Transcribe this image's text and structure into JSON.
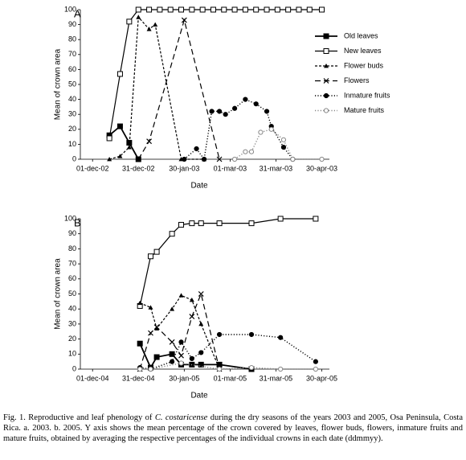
{
  "chart_data": [
    {
      "type": "line",
      "panel": "A",
      "y_label": "Mean of crown area",
      "x_label": "Date",
      "legend": "right",
      "xlim": [
        "2002-11-23",
        "2003-05-05"
      ],
      "ylim": [
        0,
        100
      ],
      "xticks": [
        {
          "value": "2002-12-01",
          "label": "01-dec-02"
        },
        {
          "value": "2002-12-31",
          "label": "31-dec-02"
        },
        {
          "value": "2003-01-30",
          "label": "30-jan-03"
        },
        {
          "value": "2003-03-01",
          "label": "01-mar-03"
        },
        {
          "value": "2003-03-31",
          "label": "31-mar-03"
        },
        {
          "value": "2003-04-30",
          "label": "30-apr-03"
        }
      ],
      "yticks": [
        0,
        10,
        20,
        30,
        40,
        50,
        60,
        70,
        80,
        90,
        100
      ],
      "series": [
        {
          "name": "Old leaves",
          "color": "#000000",
          "marker": "square-filled",
          "line": "solid-thick",
          "x": [
            "2002-12-12",
            "2002-12-19",
            "2002-12-25",
            "2002-12-31"
          ],
          "values": [
            16,
            22,
            11,
            0
          ]
        },
        {
          "name": "New leaves",
          "color": "#000000",
          "marker": "square-open",
          "line": "solid",
          "x": [
            "2002-12-12",
            "2002-12-19",
            "2002-12-25",
            "2002-12-31",
            "2003-01-07",
            "2003-01-14",
            "2003-01-21",
            "2003-01-28",
            "2003-02-04",
            "2003-02-11",
            "2003-02-18",
            "2003-02-25",
            "2003-03-04",
            "2003-03-11",
            "2003-03-18",
            "2003-03-25",
            "2003-04-01",
            "2003-04-08",
            "2003-04-15",
            "2003-04-22",
            "2003-04-30"
          ],
          "values": [
            14,
            57,
            92,
            100,
            100,
            100,
            100,
            100,
            100,
            100,
            100,
            100,
            100,
            100,
            100,
            100,
            100,
            100,
            100,
            100,
            100
          ]
        },
        {
          "name": "Flower buds",
          "color": "#000000",
          "marker": "triangle-filled",
          "line": "short-dash",
          "x": [
            "2002-12-12",
            "2002-12-19",
            "2002-12-25",
            "2002-12-31",
            "2003-01-07",
            "2003-01-11",
            "2003-01-28",
            "2003-02-12"
          ],
          "values": [
            0,
            2,
            8,
            95,
            87,
            90,
            0,
            0
          ]
        },
        {
          "name": "Flowers",
          "color": "#000000",
          "marker": "x",
          "line": "long-dash",
          "x": [
            "2002-12-31",
            "2003-01-07",
            "2003-01-30",
            "2003-02-22"
          ],
          "values": [
            0,
            12,
            93,
            0
          ]
        },
        {
          "name": "Inmature fruits",
          "color": "#000000",
          "marker": "circle-filled",
          "line": "dotted",
          "x": [
            "2003-01-30",
            "2003-02-07",
            "2003-02-12",
            "2003-02-17",
            "2003-02-22",
            "2003-02-26",
            "2003-03-04",
            "2003-03-11",
            "2003-03-18",
            "2003-03-25",
            "2003-03-28",
            "2003-04-05",
            "2003-04-11"
          ],
          "values": [
            0,
            7,
            0,
            32,
            32,
            30,
            34,
            40,
            37,
            32,
            22,
            8,
            0
          ]
        },
        {
          "name": "Mature fruits",
          "color": "#888888",
          "marker": "circle-open",
          "line": "dotted",
          "x": [
            "2003-03-04",
            "2003-03-11",
            "2003-03-15",
            "2003-03-21",
            "2003-03-28",
            "2003-04-05",
            "2003-04-11",
            "2003-04-30"
          ],
          "values": [
            0,
            5,
            5,
            18,
            20,
            13,
            0,
            0
          ]
        }
      ]
    },
    {
      "type": "line",
      "panel": "B",
      "y_label": "Mean of crown area",
      "x_label": "Date",
      "xlim": [
        "2004-11-23",
        "2005-05-05"
      ],
      "ylim": [
        0,
        100
      ],
      "xticks": [
        {
          "value": "2004-12-01",
          "label": "01-dec-04"
        },
        {
          "value": "2004-12-31",
          "label": "31-dec-04"
        },
        {
          "value": "2005-01-30",
          "label": "30-jan-05"
        },
        {
          "value": "2005-03-01",
          "label": "01-mar-05"
        },
        {
          "value": "2005-03-31",
          "label": "31-mar-05"
        },
        {
          "value": "2005-04-30",
          "label": "30-apr-05"
        }
      ],
      "yticks": [
        0,
        10,
        20,
        30,
        40,
        50,
        60,
        70,
        80,
        90,
        100
      ],
      "series": [
        {
          "color": "#000000",
          "marker": "square-filled",
          "line": "solid-thick",
          "x": [
            "2005-01-01",
            "2005-01-08",
            "2005-01-12",
            "2005-01-22",
            "2005-01-28",
            "2005-02-04",
            "2005-02-10",
            "2005-02-22",
            "2005-03-15"
          ],
          "values": [
            17,
            1,
            8,
            10,
            3,
            3,
            3,
            3,
            0
          ]
        },
        {
          "color": "#000000",
          "marker": "square-open",
          "line": "solid",
          "x": [
            "2005-01-01",
            "2005-01-08",
            "2005-01-12",
            "2005-01-22",
            "2005-01-28",
            "2005-02-04",
            "2005-02-10",
            "2005-02-22",
            "2005-03-15",
            "2005-04-03",
            "2005-04-26"
          ],
          "values": [
            42,
            75,
            78,
            90,
            96,
            97,
            97,
            97,
            97,
            100,
            100
          ]
        },
        {
          "color": "#000000",
          "marker": "triangle-filled",
          "line": "short-dash",
          "x": [
            "2005-01-01",
            "2005-01-08",
            "2005-01-12",
            "2005-01-22",
            "2005-01-28",
            "2005-02-04",
            "2005-02-10",
            "2005-02-22"
          ],
          "values": [
            44,
            41,
            27,
            40,
            49,
            46,
            30,
            0
          ]
        },
        {
          "color": "#000000",
          "marker": "x",
          "line": "long-dash",
          "x": [
            "2005-01-01",
            "2005-01-08",
            "2005-01-12",
            "2005-01-22",
            "2005-01-28",
            "2005-02-04",
            "2005-02-10",
            "2005-02-22"
          ],
          "values": [
            0,
            24,
            28,
            18,
            9,
            35,
            50,
            0
          ]
        },
        {
          "color": "#000000",
          "marker": "circle-filled",
          "line": "dotted",
          "x": [
            "2005-01-01",
            "2005-01-08",
            "2005-01-22",
            "2005-01-28",
            "2005-02-04",
            "2005-02-10",
            "2005-02-22",
            "2005-03-15",
            "2005-04-03",
            "2005-04-26"
          ],
          "values": [
            1,
            0,
            5,
            18,
            7,
            11,
            23,
            23,
            21,
            5
          ]
        },
        {
          "color": "#888888",
          "marker": "circle-open",
          "line": "dotted",
          "x": [
            "2005-01-01",
            "2005-01-08",
            "2005-01-28",
            "2005-02-22",
            "2005-03-15",
            "2005-04-03",
            "2005-04-26"
          ],
          "values": [
            0,
            0,
            4,
            0,
            1,
            0,
            0
          ]
        }
      ]
    }
  ],
  "caption": [
    "Fig. 1. Reproductive and leaf phenology of ",
    "C. costaricense",
    " during the dry seasons of the years 2003 and 2005, Osa Peninsula, Costa Rica. a. 2003. b. 2005. Y axis shows the mean percentage of the crown covered by leaves, flower buds, flowers, inmature fruits and mature fruits, obtained by averaging the respective percentages of the individual crowns in each date (ddmmyy)."
  ]
}
